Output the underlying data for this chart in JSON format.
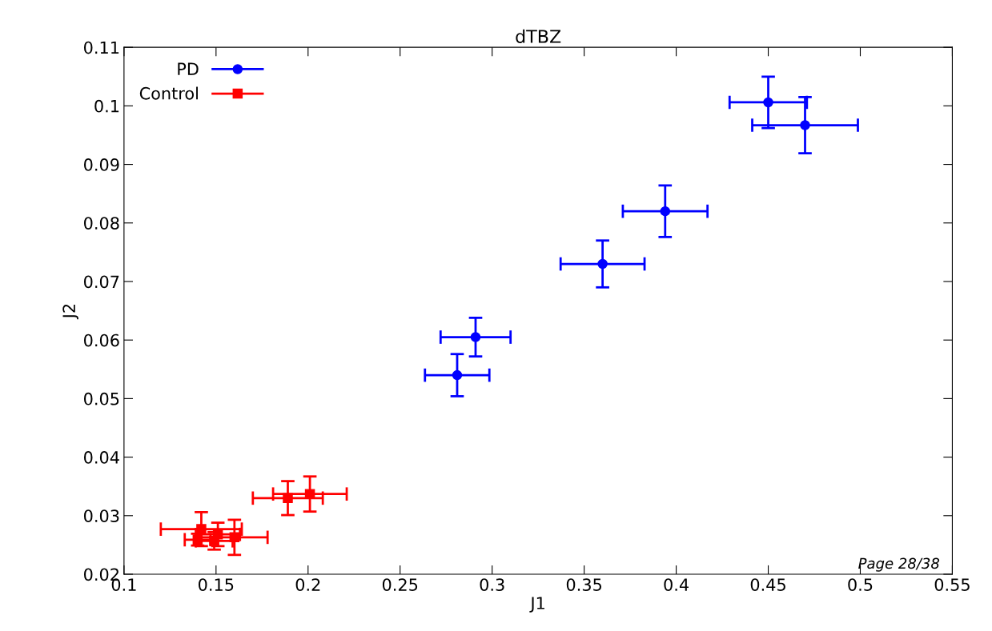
{
  "chart_data": {
    "type": "scatter",
    "title": "dTBZ",
    "xlabel": "J1",
    "ylabel": "J2",
    "xlim": [
      0.1,
      0.55
    ],
    "xticks": [
      0.1,
      0.15,
      0.2,
      0.25,
      0.3,
      0.35,
      0.4,
      0.45,
      0.5,
      0.55
    ],
    "ylim": [
      0.02,
      0.11
    ],
    "yticks": [
      0.02,
      0.03,
      0.04,
      0.05,
      0.06,
      0.07,
      0.08,
      0.09,
      0.1,
      0.11
    ],
    "grid": false,
    "legend": "top left",
    "series": [
      {
        "name": "PD",
        "color": "#0000ff",
        "marker": "circle",
        "x": [
          0.281,
          0.291,
          0.36,
          0.394,
          0.45,
          0.47
        ],
        "values": [
          0.054,
          0.0605,
          0.073,
          0.082,
          0.1006,
          0.0967
        ],
        "xerrors": [
          0.0175,
          0.019,
          0.0228,
          0.023,
          0.021,
          0.0287
        ],
        "errors": [
          0.0036,
          0.0033,
          0.004,
          0.0044,
          0.0044,
          0.0048
        ]
      },
      {
        "name": "Control",
        "color": "#ff0000",
        "marker": "square",
        "x": [
          0.142,
          0.149,
          0.151,
          0.16,
          0.14,
          0.189,
          0.201
        ],
        "values": [
          0.0277,
          0.0257,
          0.0268,
          0.0263,
          0.0259,
          0.033,
          0.0337
        ],
        "xerrors": [
          0.022,
          0.01,
          0.012,
          0.018,
          0.007,
          0.019,
          0.02
        ],
        "errors": [
          0.0029,
          0.0015,
          0.002,
          0.003,
          0.001,
          0.0029,
          0.003
        ]
      }
    ],
    "annotations": [
      "Page 28/38"
    ]
  }
}
